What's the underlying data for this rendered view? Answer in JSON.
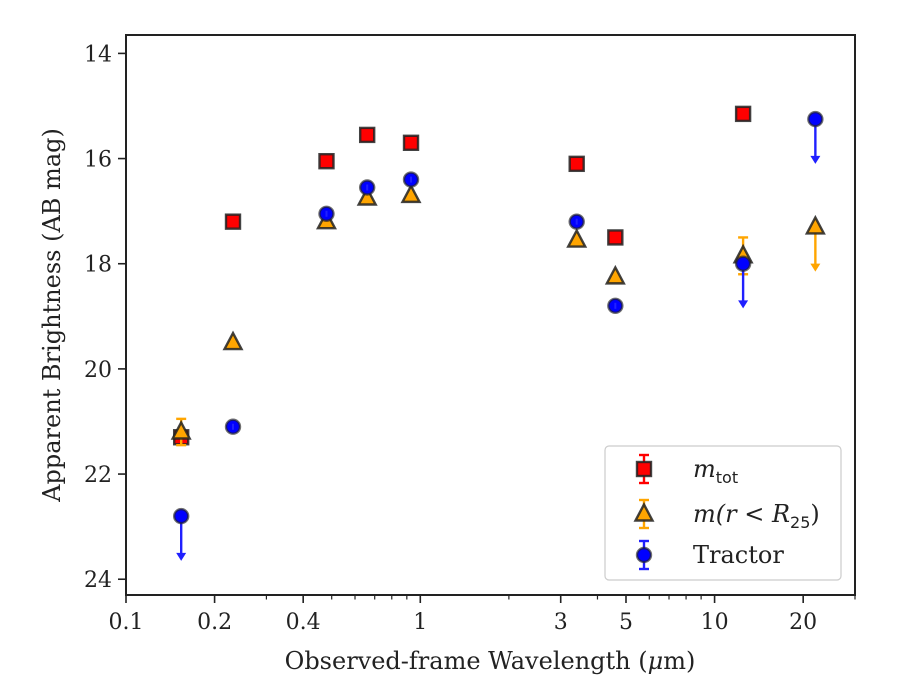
{
  "chart_data": {
    "type": "scatter",
    "xlabel_prefix": "Observed-frame Wavelength (",
    "xlabel_unit_mu": "μ",
    "xlabel_suffix": "m)",
    "ylabel": "Apparent Brightness (AB mag)",
    "x_scale": "log",
    "xlim": [
      0.1,
      30
    ],
    "ylim": [
      24.3,
      13.65
    ],
    "y_inverted": true,
    "grid": false,
    "legend_placement": "bottom-right",
    "x_ticks": [
      {
        "value": 0.1,
        "label": "0.1"
      },
      {
        "value": 0.2,
        "label": "0.2"
      },
      {
        "value": 0.4,
        "label": "0.4"
      },
      {
        "value": 1,
        "label": "1"
      },
      {
        "value": 3,
        "label": "3"
      },
      {
        "value": 5,
        "label": "5"
      },
      {
        "value": 10,
        "label": "10"
      },
      {
        "value": 20,
        "label": "20"
      }
    ],
    "x_minor_ticks": [
      0.3,
      0.5,
      0.6,
      0.7,
      0.8,
      0.9,
      2,
      4,
      6,
      7,
      8,
      9,
      30
    ],
    "y_ticks": [
      {
        "value": 14,
        "label": "14"
      },
      {
        "value": 16,
        "label": "16"
      },
      {
        "value": 18,
        "label": "18"
      },
      {
        "value": 20,
        "label": "20"
      },
      {
        "value": 22,
        "label": "22"
      },
      {
        "value": 24,
        "label": "24"
      }
    ],
    "series": [
      {
        "name_main": "m",
        "name_sub": "tot",
        "marker": "square",
        "color": "#ff0000",
        "err_color": "#ff0000",
        "points": [
          {
            "x": 0.154,
            "y": 21.3
          },
          {
            "x": 0.231,
            "y": 17.2
          },
          {
            "x": 0.48,
            "y": 16.05
          },
          {
            "x": 0.66,
            "y": 15.55
          },
          {
            "x": 0.93,
            "y": 15.7
          },
          {
            "x": 3.4,
            "y": 16.1
          },
          {
            "x": 4.6,
            "y": 17.5
          },
          {
            "x": 12.5,
            "y": 15.15
          }
        ]
      },
      {
        "name_main": "m(r < R",
        "name_sub": "25",
        "name_close": ")",
        "marker": "triangle",
        "color": "#ffa500",
        "err_color": "#ffa500",
        "points": [
          {
            "x": 0.154,
            "y": 21.2,
            "err": [
              0.25,
              0.25
            ]
          },
          {
            "x": 0.231,
            "y": 19.5
          },
          {
            "x": 0.48,
            "y": 17.2
          },
          {
            "x": 0.66,
            "y": 16.75
          },
          {
            "x": 0.93,
            "y": 16.7
          },
          {
            "x": 3.4,
            "y": 17.55
          },
          {
            "x": 4.6,
            "y": 18.25
          },
          {
            "x": 12.5,
            "y": 17.85,
            "err": [
              0.35,
              0.35
            ]
          },
          {
            "x": 22,
            "y": 17.3,
            "upper_limit": 0.85
          }
        ]
      },
      {
        "name": "Tractor",
        "marker": "circle",
        "color": "#0000ff",
        "err_color": "#2020ff",
        "points": [
          {
            "x": 0.154,
            "y": 22.8,
            "upper_limit": 0.85
          },
          {
            "x": 0.231,
            "y": 21.1
          },
          {
            "x": 0.48,
            "y": 17.05
          },
          {
            "x": 0.66,
            "y": 16.55
          },
          {
            "x": 0.93,
            "y": 16.4
          },
          {
            "x": 3.4,
            "y": 17.2
          },
          {
            "x": 4.6,
            "y": 18.8
          },
          {
            "x": 12.5,
            "y": 18.0,
            "upper_limit": 0.85
          },
          {
            "x": 22,
            "y": 15.25,
            "upper_limit": 0.85
          }
        ]
      }
    ]
  }
}
